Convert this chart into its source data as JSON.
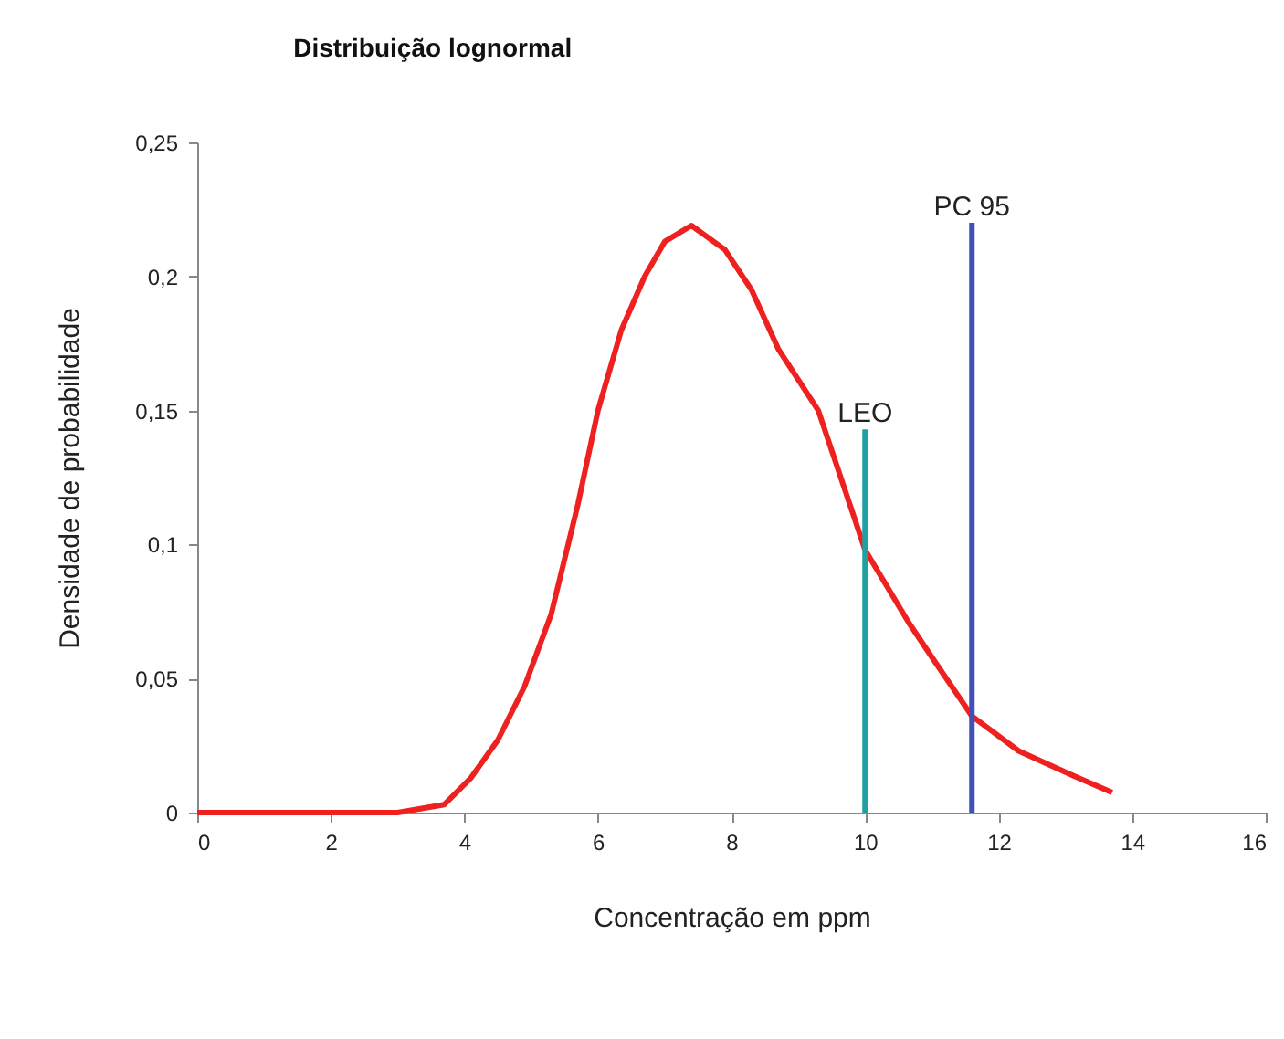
{
  "chart_data": {
    "type": "line",
    "title": "Distribuição lognormal",
    "xlabel": "Concentração em ppm",
    "ylabel": "Densidade de probabilidade",
    "xlim": [
      0,
      16
    ],
    "xticks": [
      0,
      2,
      4,
      6,
      8,
      10,
      12,
      14,
      16
    ],
    "ylim": [
      0,
      0.25
    ],
    "yticks": [
      0,
      {
        "value": 0.05,
        "label": "0,05"
      },
      {
        "value": 0.1,
        "label": "0,1"
      },
      {
        "value": 0.15,
        "label": "0,15"
      },
      {
        "value": 0.2,
        "label": "0,2"
      },
      {
        "value": 0.25,
        "label": "0,25"
      }
    ],
    "grid": false,
    "legend": false,
    "marker": "none",
    "line_style": "solid",
    "series": [
      {
        "color": "#ee2020",
        "x": [
          0,
          1,
          2,
          3,
          3.7,
          4.1,
          4.5,
          4.9,
          5.3,
          5.7,
          6.0,
          6.35,
          6.7,
          7.0,
          7.4,
          7.9,
          8.3,
          8.7,
          9.3,
          10.0,
          10.65,
          11.0,
          11.6,
          12.3,
          13.1,
          13.7
        ],
        "values": [
          0,
          0,
          0,
          0,
          0.003,
          0.013,
          0.027,
          0.047,
          0.074,
          0.115,
          0.15,
          0.18,
          0.2,
          0.213,
          0.219,
          0.21,
          0.195,
          0.173,
          0.15,
          0.098,
          0.071,
          0.058,
          0.036,
          0.023,
          0.014,
          0.0075
        ]
      },
      {
        "name": "LEO",
        "type": "line",
        "color": "#20a0a0",
        "x": [
          10,
          10
        ],
        "values": [
          0,
          0.143
        ]
      },
      {
        "name": "PC 95",
        "type": "line",
        "color": "#4050b8",
        "x": [
          11.6,
          11.6
        ],
        "values": [
          0,
          0.22
        ]
      }
    ]
  }
}
